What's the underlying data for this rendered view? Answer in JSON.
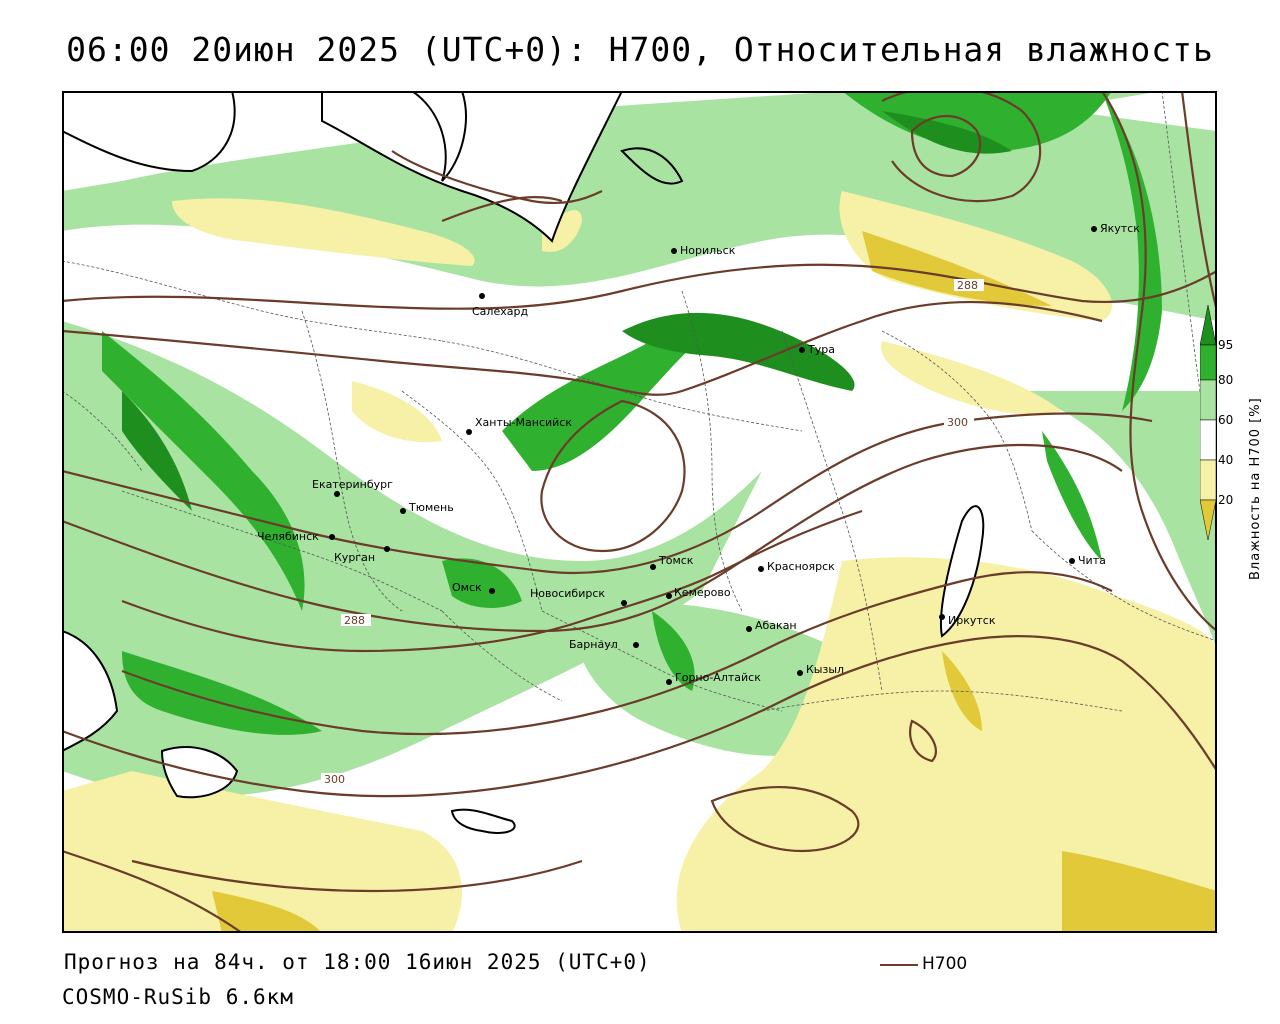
{
  "title": "06:00 20июн 2025 (UTC+0): H700, Относительная влажность",
  "footer": {
    "forecast": "Прогноз на 84ч. от 18:00 16июн 2025 (UTC+0)",
    "model": "COSMO-RuSib 6.6км",
    "legend_line_label": "H700"
  },
  "colorbar": {
    "label": "Влажность на H700 [%]",
    "ticks": [
      "95",
      "80",
      "60",
      "40",
      "20"
    ],
    "colors": [
      "#1e8f1e",
      "#2fb12f",
      "#a9e3a1",
      "#ffffff",
      "#f6f1a6",
      "#e1c93a"
    ]
  },
  "contours": {
    "color": "#6b3c2a",
    "labels": [
      "288",
      "300",
      "288",
      "300"
    ]
  },
  "cities": [
    {
      "name": "Норильск"
    },
    {
      "name": "Салехард"
    },
    {
      "name": "Якутск"
    },
    {
      "name": "Тура"
    },
    {
      "name": "Ханты-Мансийск"
    },
    {
      "name": "Екатеринбург"
    },
    {
      "name": "Тюмень"
    },
    {
      "name": "Челябинск"
    },
    {
      "name": "Курган"
    },
    {
      "name": "Омск"
    },
    {
      "name": "Новосибирск"
    },
    {
      "name": "Томск"
    },
    {
      "name": "Кемерово"
    },
    {
      "name": "Красноярск"
    },
    {
      "name": "Барнаул"
    },
    {
      "name": "Абакан"
    },
    {
      "name": "Кызыл"
    },
    {
      "name": "Горно-Алтайск"
    },
    {
      "name": "Иркутск"
    },
    {
      "name": "Чита"
    }
  ]
}
